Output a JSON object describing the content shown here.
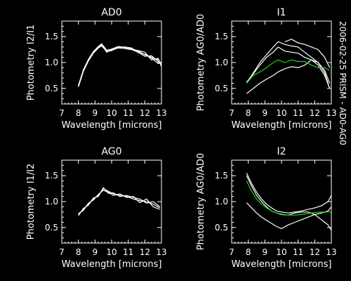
{
  "side_label": "2006-02-25 PRISM - AD0-AG0",
  "chart_data": [
    {
      "type": "line",
      "title": "AD0",
      "xlabel": "Wavelength [microns]",
      "ylabel": "Photometry I2/I1",
      "xlim": [
        7,
        13
      ],
      "ylim": [
        0.2,
        1.8
      ],
      "xticks": [
        7,
        8,
        9,
        10,
        11,
        12,
        13
      ],
      "yticks": [
        0.5,
        1.0,
        1.5
      ],
      "ytick_labels": [
        "0.5",
        "1.0",
        "1.5"
      ],
      "series": [
        {
          "color": "#ffffff",
          "x": [
            8.0,
            8.3,
            8.6,
            8.9,
            9.2,
            9.4,
            9.7,
            10.0,
            10.4,
            10.8,
            11.2,
            11.6,
            12.0,
            12.4,
            12.8,
            13.0
          ],
          "y": [
            0.55,
            0.85,
            1.05,
            1.2,
            1.3,
            1.35,
            1.2,
            1.25,
            1.3,
            1.3,
            1.27,
            1.22,
            1.15,
            1.1,
            1.05,
            0.98
          ]
        },
        {
          "color": "#ffffff",
          "x": [
            8.0,
            8.3,
            8.6,
            8.9,
            9.2,
            9.4,
            9.7,
            10.0,
            10.4,
            10.8,
            11.2,
            11.6,
            12.0,
            12.4,
            12.8,
            13.0
          ],
          "y": [
            0.53,
            0.83,
            1.03,
            1.18,
            1.28,
            1.32,
            1.22,
            1.24,
            1.28,
            1.27,
            1.25,
            1.2,
            1.12,
            1.13,
            1.02,
            0.95
          ]
        },
        {
          "color": "#ffffff",
          "x": [
            8.0,
            8.3,
            8.6,
            8.9,
            9.2,
            9.4,
            9.7,
            10.0,
            10.4,
            10.8,
            11.2,
            11.6,
            12.0,
            12.4,
            12.8,
            13.0
          ],
          "y": [
            0.56,
            0.86,
            1.06,
            1.21,
            1.31,
            1.36,
            1.24,
            1.26,
            1.31,
            1.29,
            1.26,
            1.23,
            1.2,
            1.05,
            1.08,
            0.92
          ]
        },
        {
          "color": "#ffffff",
          "x": [
            8.0,
            8.3,
            8.6,
            8.9,
            9.2,
            9.4,
            9.7,
            10.0,
            10.4,
            10.8,
            11.2,
            11.6,
            12.0,
            12.4,
            12.8,
            13.0
          ],
          "y": [
            0.54,
            0.84,
            1.04,
            1.19,
            1.29,
            1.34,
            1.21,
            1.23,
            1.29,
            1.3,
            1.28,
            1.19,
            1.16,
            1.09,
            0.98,
            1.0
          ]
        }
      ]
    },
    {
      "type": "line",
      "title": "I1",
      "xlabel": "Wavelength [microns]",
      "ylabel": "Photometry AG0/AD0",
      "xlim": [
        7,
        13
      ],
      "ylim": [
        0.2,
        1.8
      ],
      "xticks": [
        7,
        8,
        9,
        10,
        11,
        12,
        13
      ],
      "yticks": [
        0.5,
        1.0,
        1.5
      ],
      "ytick_labels": [
        "0.5",
        "1.0",
        "1.5"
      ],
      "series": [
        {
          "color": "#ffffff",
          "x": [
            7.9,
            8.3,
            8.7,
            9.1,
            9.5,
            9.8,
            10.2,
            10.6,
            11.0,
            11.4,
            11.8,
            12.2,
            12.6,
            12.9
          ],
          "y": [
            0.6,
            0.8,
            1.0,
            1.15,
            1.3,
            1.4,
            1.35,
            1.32,
            1.3,
            1.2,
            1.1,
            1.0,
            0.85,
            0.6
          ]
        },
        {
          "color": "#ffffff",
          "x": [
            7.9,
            8.3,
            8.7,
            9.1,
            9.5,
            9.8,
            10.2,
            10.6,
            11.0,
            11.4,
            11.8,
            12.2,
            12.6,
            12.9
          ],
          "y": [
            0.62,
            0.78,
            0.95,
            1.1,
            1.2,
            1.3,
            1.22,
            1.2,
            1.18,
            1.1,
            1.05,
            0.95,
            0.75,
            0.5
          ]
        },
        {
          "color": "#ffffff",
          "x": [
            7.9,
            8.3,
            8.7,
            9.1,
            9.5,
            9.8,
            10.2,
            10.6,
            11.0,
            11.4,
            11.8,
            12.2,
            12.6,
            12.9
          ],
          "y": [
            0.4,
            0.5,
            0.6,
            0.68,
            0.75,
            0.82,
            0.88,
            0.92,
            0.9,
            0.95,
            1.05,
            1.0,
            0.8,
            0.5
          ]
        },
        {
          "color": "#ffffff",
          "x": [
            10.2,
            10.6,
            11.0,
            11.4,
            11.8,
            12.2,
            12.6,
            12.9
          ],
          "y": [
            1.4,
            1.45,
            1.38,
            1.35,
            1.3,
            1.25,
            1.1,
            0.9
          ]
        },
        {
          "color": "#22cc22",
          "x": [
            7.9,
            8.3,
            8.7,
            9.1,
            9.5,
            9.8,
            10.2,
            10.6,
            11.0,
            11.4,
            11.8,
            12.2,
            12.6,
            12.9
          ],
          "y": [
            0.6,
            0.75,
            0.82,
            0.9,
            1.0,
            1.05,
            1.0,
            1.05,
            1.02,
            1.02,
            0.95,
            0.9,
            0.9,
            0.85
          ]
        }
      ]
    },
    {
      "type": "line",
      "title": "AG0",
      "xlabel": "Wavelength [microns]",
      "ylabel": "Photometry I1/I2",
      "xlim": [
        7,
        13
      ],
      "ylim": [
        0.2,
        1.8
      ],
      "xticks": [
        7,
        8,
        9,
        10,
        11,
        12,
        13
      ],
      "yticks": [
        0.5,
        1.0,
        1.5
      ],
      "ytick_labels": [
        "0.5",
        "1.0",
        "1.5"
      ],
      "series": [
        {
          "color": "#ffffff",
          "x": [
            8.0,
            8.3,
            8.6,
            8.9,
            9.2,
            9.5,
            9.8,
            10.1,
            10.5,
            10.9,
            11.3,
            11.7,
            12.1,
            12.5,
            12.9
          ],
          "y": [
            0.75,
            0.85,
            0.95,
            1.05,
            1.12,
            1.25,
            1.2,
            1.15,
            1.12,
            1.1,
            1.05,
            1.02,
            1.0,
            0.95,
            0.88
          ]
        },
        {
          "color": "#ffffff",
          "x": [
            8.0,
            8.3,
            8.6,
            8.9,
            9.2,
            9.5,
            9.8,
            10.1,
            10.5,
            10.9,
            11.3,
            11.7,
            12.1,
            12.5,
            12.9
          ],
          "y": [
            0.77,
            0.83,
            0.97,
            1.03,
            1.14,
            1.22,
            1.18,
            1.12,
            1.15,
            1.08,
            1.1,
            0.98,
            1.05,
            0.9,
            0.85
          ]
        },
        {
          "color": "#ffffff",
          "x": [
            8.0,
            8.3,
            8.6,
            8.9,
            9.2,
            9.5,
            9.8,
            10.1,
            10.5,
            10.9,
            11.3,
            11.7,
            12.1,
            12.5,
            12.9
          ],
          "y": [
            0.73,
            0.87,
            0.93,
            1.07,
            1.1,
            1.27,
            1.16,
            1.17,
            1.1,
            1.12,
            1.08,
            1.05,
            0.97,
            1.0,
            0.9
          ]
        }
      ]
    },
    {
      "type": "line",
      "title": "I2",
      "xlabel": "Wavelength [microns]",
      "ylabel": "Photometry AG0/AD0",
      "xlim": [
        7,
        13
      ],
      "ylim": [
        0.2,
        1.8
      ],
      "xticks": [
        7,
        8,
        9,
        10,
        11,
        12,
        13
      ],
      "yticks": [
        0.5,
        1.0,
        1.5
      ],
      "ytick_labels": [
        "0.5",
        "1.0",
        "1.5"
      ],
      "series": [
        {
          "color": "#ffffff",
          "x": [
            7.9,
            8.2,
            8.5,
            8.8,
            9.1,
            9.4,
            9.7,
            10.0,
            10.4,
            10.8,
            11.2,
            11.6,
            12.0,
            12.4,
            12.8,
            13.0
          ],
          "y": [
            1.55,
            1.35,
            1.18,
            1.05,
            0.95,
            0.88,
            0.82,
            0.8,
            0.78,
            0.8,
            0.82,
            0.85,
            0.88,
            0.92,
            1.0,
            1.12
          ]
        },
        {
          "color": "#ffffff",
          "x": [
            7.9,
            8.2,
            8.5,
            8.8,
            9.1,
            9.4,
            9.7,
            10.0,
            10.4,
            10.8,
            11.2,
            11.6,
            12.0,
            12.4,
            12.8,
            13.0
          ],
          "y": [
            1.5,
            1.3,
            1.12,
            1.0,
            0.9,
            0.82,
            0.78,
            0.75,
            0.74,
            0.78,
            0.8,
            0.8,
            0.75,
            0.65,
            0.55,
            0.45
          ]
        },
        {
          "color": "#ffffff",
          "x": [
            7.9,
            8.2,
            8.5,
            8.8,
            9.1,
            9.4,
            9.7,
            10.0,
            10.4,
            10.8,
            11.2,
            11.6,
            12.0,
            12.4,
            12.8,
            13.0
          ],
          "y": [
            0.98,
            0.88,
            0.78,
            0.7,
            0.64,
            0.58,
            0.52,
            0.48,
            0.55,
            0.6,
            0.65,
            0.7,
            0.75,
            0.78,
            0.82,
            0.9
          ]
        },
        {
          "color": "#22cc22",
          "x": [
            7.9,
            8.2,
            8.5,
            8.8,
            9.1,
            9.4,
            9.7,
            10.0,
            10.4,
            10.8,
            11.2,
            11.6,
            12.0,
            12.4,
            12.8,
            13.0
          ],
          "y": [
            1.4,
            1.2,
            1.05,
            0.95,
            0.88,
            0.82,
            0.78,
            0.76,
            0.74,
            0.74,
            0.75,
            0.77,
            0.79,
            0.8,
            0.8,
            0.8
          ]
        }
      ]
    }
  ]
}
